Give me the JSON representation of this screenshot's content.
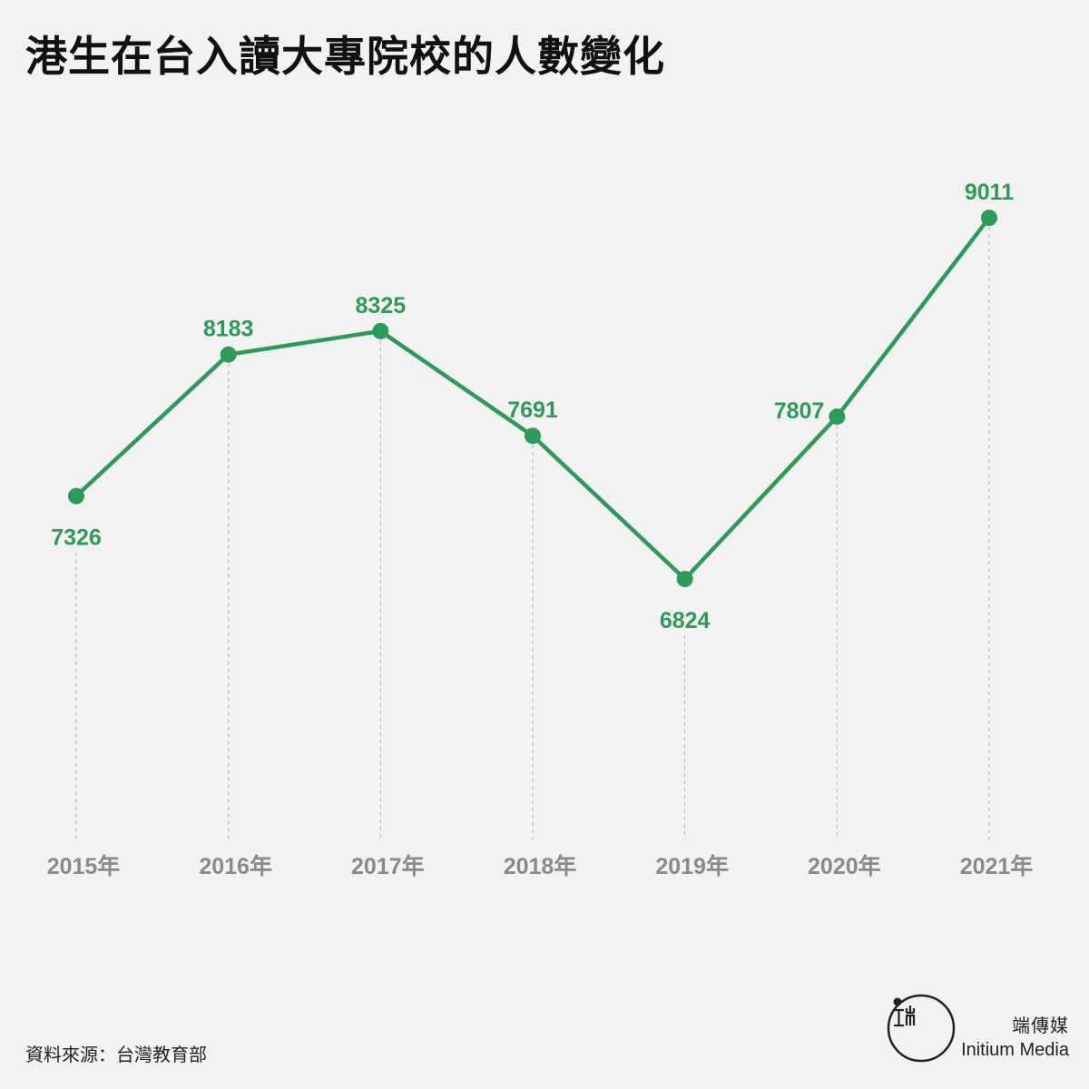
{
  "title": "港生在台入讀大專院校的人數變化",
  "source": "資料來源：台灣教育部",
  "brand": {
    "name_cn": "端傳媒",
    "name_en": "Initium Media"
  },
  "colors": {
    "line": "#2e9a5a",
    "label": "#2e9a5a",
    "axis_label": "#8a8a8a",
    "gridline": "#bdbdbd",
    "background": "#f2f2f2"
  },
  "chart_data": {
    "type": "line",
    "categories": [
      "2015年",
      "2016年",
      "2017年",
      "2018年",
      "2019年",
      "2020年",
      "2021年"
    ],
    "series": [
      {
        "values": [
          7326,
          8183,
          8325,
          7691,
          6824,
          7807,
          9011
        ]
      }
    ],
    "grid": "vertical dashed",
    "legend": "none"
  }
}
